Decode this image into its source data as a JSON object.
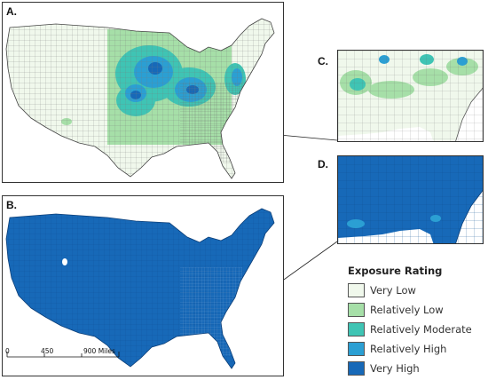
{
  "panels": {
    "a": {
      "label": "A."
    },
    "b": {
      "label": "B."
    },
    "c": {
      "label": "C."
    },
    "d": {
      "label": "D."
    }
  },
  "legend": {
    "title": "Exposure Rating",
    "items": [
      {
        "label": "Very Low",
        "color": "#f0f8ec"
      },
      {
        "label": "Relatively Low",
        "color": "#a6dfa8"
      },
      {
        "label": "Relatively Moderate",
        "color": "#3fc4b4"
      },
      {
        "label": "Relatively High",
        "color": "#2b9fd3"
      },
      {
        "label": "Very High",
        "color": "#1769b8"
      }
    ]
  },
  "scalebar": {
    "ticks": [
      "0",
      "450",
      "900 Miles"
    ]
  }
}
